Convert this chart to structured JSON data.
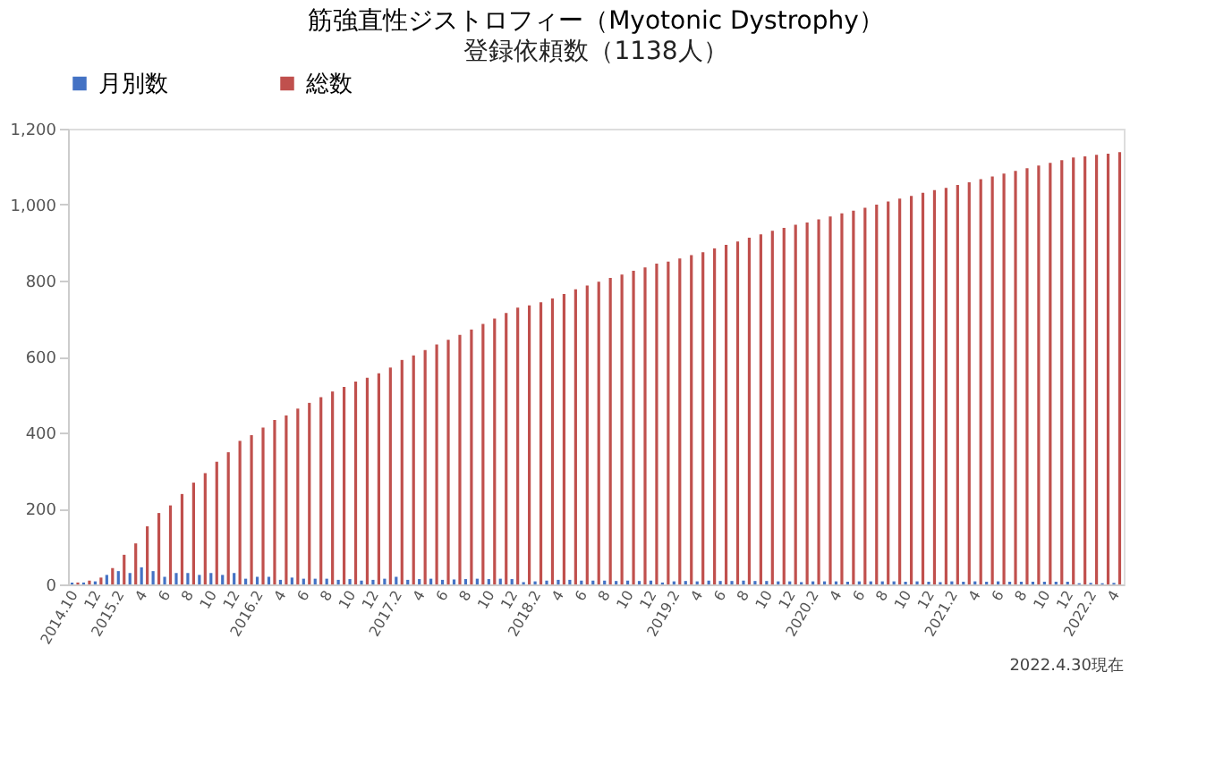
{
  "chart_data": {
    "type": "bar",
    "title": "筋強直性ジストロフィー（Myotonic Dystrophy）",
    "subtitle": "登録依頼数（1138人）",
    "categories": [
      "2014.10",
      null,
      "12",
      null,
      "2015.2",
      null,
      "4",
      null,
      "6",
      null,
      "8",
      null,
      "10",
      null,
      "12",
      null,
      "2016.2",
      null,
      "4",
      null,
      "6",
      null,
      "8",
      null,
      "10",
      null,
      "12",
      null,
      "2017.2",
      null,
      "4",
      null,
      "6",
      null,
      "8",
      null,
      "10",
      null,
      "12",
      null,
      "2018.2",
      null,
      "4",
      null,
      "6",
      null,
      "8",
      null,
      "10",
      null,
      "12",
      null,
      "2019.2",
      null,
      "4",
      null,
      "6",
      null,
      "8",
      null,
      "10",
      null,
      "12",
      null,
      "2020.2",
      null,
      "4",
      null,
      "6",
      null,
      "8",
      null,
      "10",
      null,
      "12",
      null,
      "2021.2",
      null,
      "4",
      null,
      "6",
      null,
      "8",
      null,
      "10",
      null,
      "12",
      null,
      "2022.2",
      null,
      "4"
    ],
    "series": [
      {
        "name": "月別数",
        "color": "#4472c4",
        "values": [
          5,
          5,
          8,
          25,
          35,
          30,
          45,
          35,
          20,
          30,
          30,
          25,
          30,
          25,
          30,
          15,
          20,
          20,
          12,
          18,
          15,
          15,
          15,
          12,
          14,
          10,
          12,
          15,
          20,
          12,
          14,
          15,
          12,
          13,
          14,
          15,
          14,
          15,
          14,
          6,
          8,
          10,
          12,
          12,
          10,
          10,
          10,
          9,
          10,
          9,
          10,
          5,
          8,
          9,
          8,
          10,
          9,
          9,
          10,
          9,
          9,
          8,
          8,
          6,
          8,
          8,
          8,
          7,
          8,
          8,
          8,
          8,
          7,
          8,
          7,
          6,
          8,
          7,
          8,
          7,
          8,
          7,
          7,
          7,
          7,
          7,
          7,
          3,
          4,
          3,
          4
        ]
      },
      {
        "name": "総数",
        "color": "#c0504d",
        "values": [
          5,
          10,
          18,
          43,
          78,
          108,
          153,
          188,
          208,
          238,
          268,
          293,
          323,
          348,
          378,
          393,
          413,
          433,
          445,
          463,
          478,
          493,
          508,
          520,
          534,
          544,
          556,
          571,
          591,
          603,
          617,
          632,
          644,
          657,
          671,
          686,
          700,
          715,
          729,
          735,
          743,
          753,
          765,
          777,
          787,
          797,
          807,
          816,
          826,
          835,
          845,
          850,
          858,
          867,
          875,
          885,
          894,
          903,
          913,
          922,
          931,
          939,
          947,
          953,
          961,
          969,
          977,
          984,
          992,
          1000,
          1008,
          1016,
          1023,
          1031,
          1038,
          1044,
          1052,
          1059,
          1067,
          1074,
          1082,
          1089,
          1096,
          1103,
          1110,
          1117,
          1124,
          1127,
          1131,
          1134,
          1138
        ]
      }
    ],
    "ylim": [
      0,
      1200
    ],
    "yticks": [
      0,
      200,
      400,
      600,
      800,
      {
        "value": 1000,
        "label": "1,000"
      },
      {
        "value": 1200,
        "label": "1,200"
      }
    ],
    "grid": false,
    "legend": "top",
    "annotations": [
      "2022.4.30現在"
    ]
  }
}
